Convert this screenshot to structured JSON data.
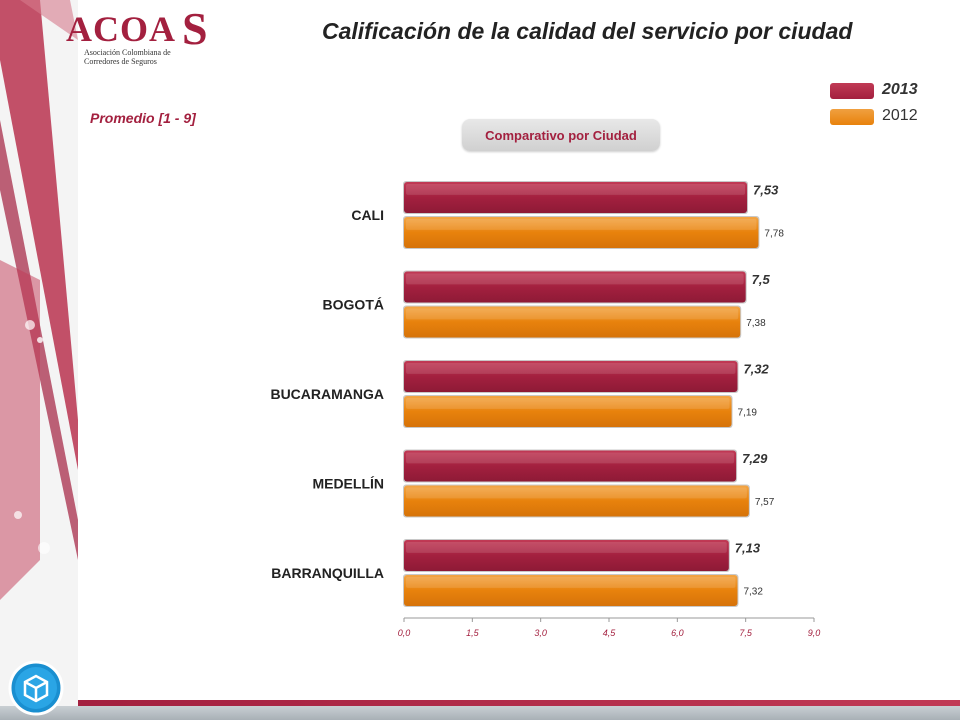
{
  "logo": {
    "main": "ACOA",
    "big_letter": "S",
    "sub_line1": "Asociación Colombiana de",
    "sub_line2": "Corredores de Seguros"
  },
  "title": "Calificación de la calidad del servicio por ciudad",
  "subtitle": "Promedio  [1 - 9]",
  "section_label": "Comparativo por Ciudad",
  "colors": {
    "series_2013": "#a3203f",
    "series_2012": "#e8820c"
  },
  "icons": {
    "bottom_left": "box-badge-icon"
  },
  "chart_data": {
    "type": "bar",
    "orientation": "horizontal",
    "categories": [
      "CALI",
      "BOGOTÁ",
      "BUCARAMANGA",
      "MEDELLÍN",
      "BARRANQUILLA"
    ],
    "series": [
      {
        "name": "2013",
        "values": [
          7.53,
          7.5,
          7.32,
          7.29,
          7.13
        ],
        "labels": [
          "7,53",
          "7,5",
          "7,32",
          "7,29",
          "7,13"
        ],
        "color": "#a3203f"
      },
      {
        "name": "2012",
        "values": [
          7.78,
          7.38,
          7.19,
          7.57,
          7.32
        ],
        "labels": [
          "7,78",
          "7,38",
          "7,19",
          "7,57",
          "7,32"
        ],
        "color": "#e8820c"
      }
    ],
    "xlim": [
      0,
      9
    ],
    "xticks": [
      "0,0",
      "1,5",
      "3,0",
      "4,5",
      "6,0",
      "7,5",
      "9,0"
    ],
    "legend_position": "top-right",
    "grid": false
  }
}
